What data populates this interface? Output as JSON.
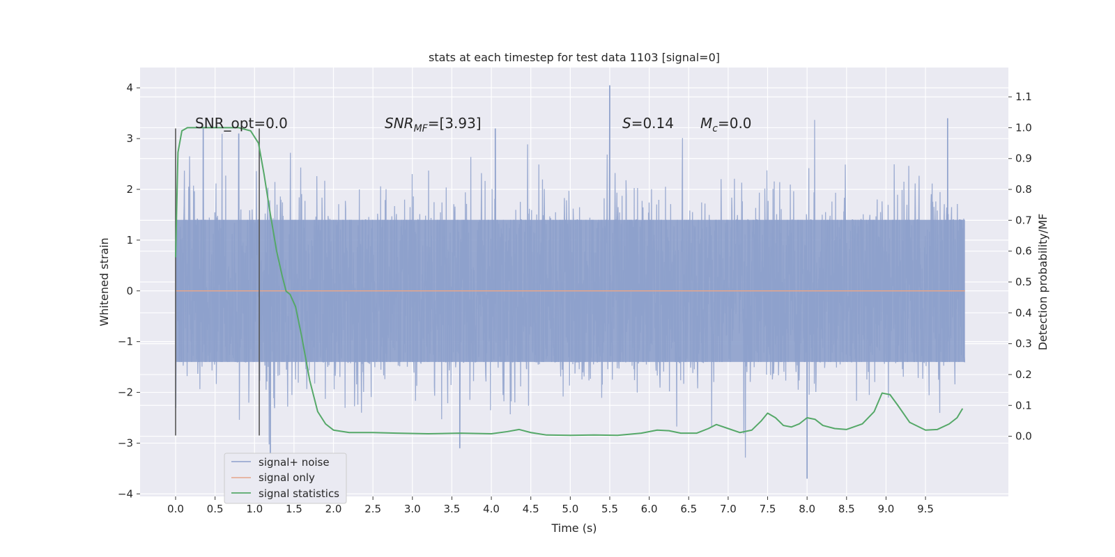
{
  "chart_data": {
    "type": "line",
    "title": "stats at each timestep for test data 1103 [signal=0]",
    "xlabel": "Time (s)",
    "ylabel_left": "Whitened strain",
    "ylabel_right": "Detection probability/MF",
    "xlim": [
      -0.45,
      10.55
    ],
    "ylim_left": [
      -4.05,
      4.4
    ],
    "ylim_right": [
      -0.195,
      1.195
    ],
    "x_ticks": [
      "0.0",
      "0.5",
      "1.0",
      "1.5",
      "2.0",
      "2.5",
      "3.0",
      "3.5",
      "4.0",
      "4.5",
      "5.0",
      "5.5",
      "6.0",
      "6.5",
      "7.0",
      "7.5",
      "8.0",
      "8.5",
      "9.0",
      "9.5"
    ],
    "y_ticks_left": [
      "4",
      "3",
      "2",
      "1",
      "0",
      "−1",
      "−2",
      "−3",
      "−4"
    ],
    "y_ticks_right": [
      "1.1",
      "1.0",
      "0.9",
      "0.8",
      "0.7",
      "0.6",
      "0.5",
      "0.4",
      "0.3",
      "0.2",
      "0.1",
      "0.0"
    ],
    "grid": true,
    "legend_placement": "lower-left",
    "colors": {
      "background": "#eaeaf2",
      "grid": "#ffffff",
      "noise": "#8da0cb",
      "signal": "#e5a58a",
      "statistics": "#55a868",
      "marker": "#555555"
    },
    "series": [
      {
        "name": "signal+ noise",
        "description_values": "dense whitened strain, mostly within [-1.4, 1.4], peaks reaching about 4.05 near t=5.5 and -3.7 near t=8.0",
        "x_range": [
          0.0,
          10.0
        ],
        "peaks": [
          [
            0.35,
            3.2
          ],
          [
            0.8,
            3.1
          ],
          [
            1.2,
            -3.2
          ],
          [
            3.6,
            -3.1
          ],
          [
            4.05,
            3.2
          ],
          [
            5.5,
            4.05
          ],
          [
            8.0,
            -3.7
          ],
          [
            9.78,
            3.4
          ]
        ]
      },
      {
        "name": "signal only",
        "x": [
          0.0,
          10.0
        ],
        "y": [
          0.0,
          0.0
        ]
      },
      {
        "name": "signal statistics",
        "axis": "right",
        "x": [
          0.0,
          0.03,
          0.08,
          0.15,
          0.25,
          0.4,
          0.6,
          0.8,
          0.95,
          1.05,
          1.12,
          1.2,
          1.28,
          1.35,
          1.4,
          1.45,
          1.52,
          1.6,
          1.7,
          1.8,
          1.9,
          2.0,
          2.2,
          2.5,
          2.8,
          3.2,
          3.6,
          4.0,
          4.2,
          4.35,
          4.5,
          4.7,
          5.0,
          5.3,
          5.6,
          5.9,
          6.1,
          6.25,
          6.4,
          6.6,
          6.75,
          6.85,
          7.0,
          7.15,
          7.3,
          7.42,
          7.5,
          7.6,
          7.7,
          7.8,
          7.9,
          8.0,
          8.1,
          8.2,
          8.35,
          8.5,
          8.7,
          8.85,
          8.95,
          9.05,
          9.15,
          9.3,
          9.5,
          9.65,
          9.8,
          9.9,
          9.97
        ],
        "y": [
          0.58,
          0.92,
          0.99,
          1.0,
          1.0,
          1.0,
          1.0,
          1.0,
          0.99,
          0.95,
          0.85,
          0.72,
          0.6,
          0.52,
          0.47,
          0.46,
          0.42,
          0.32,
          0.18,
          0.08,
          0.04,
          0.02,
          0.012,
          0.012,
          0.01,
          0.008,
          0.01,
          0.008,
          0.015,
          0.022,
          0.012,
          0.004,
          0.003,
          0.004,
          0.003,
          0.01,
          0.02,
          0.018,
          0.01,
          0.01,
          0.025,
          0.038,
          0.025,
          0.012,
          0.02,
          0.05,
          0.075,
          0.06,
          0.035,
          0.03,
          0.04,
          0.06,
          0.055,
          0.035,
          0.025,
          0.022,
          0.04,
          0.08,
          0.14,
          0.135,
          0.1,
          0.045,
          0.02,
          0.022,
          0.04,
          0.06,
          0.09
        ]
      }
    ],
    "vertical_markers": [
      {
        "x": 0.0,
        "y_top": 3.2,
        "y_bottom": -2.85
      },
      {
        "x": 1.06,
        "y_top": 3.2,
        "y_bottom": -2.85
      }
    ],
    "annotations": [
      {
        "id": "snr-opt",
        "prefix": "SNR_opt",
        "value": "=0.0"
      },
      {
        "id": "snr-mf",
        "prefix": "SNR",
        "sub": "MF",
        "value": "=[3.93]"
      },
      {
        "id": "s-stat",
        "prefix": "S",
        "value": "=0.14"
      },
      {
        "id": "mc",
        "prefix": "M",
        "sub": "c",
        "value": "=0.0"
      }
    ]
  }
}
